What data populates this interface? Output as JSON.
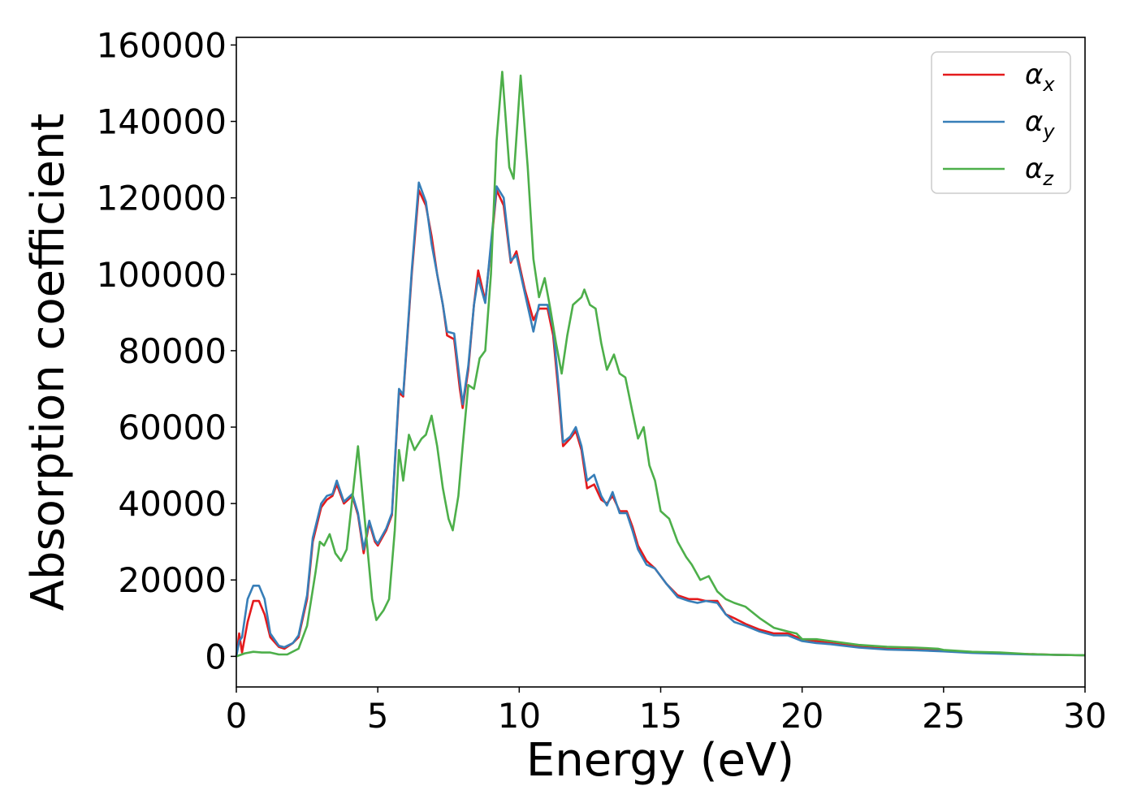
{
  "chart_data": {
    "type": "line",
    "xlabel": "Energy (eV)",
    "ylabel": "Absorption coefficient",
    "xlim": [
      0,
      30
    ],
    "ylim": [
      -8000,
      162000
    ],
    "xticks": [
      0,
      5,
      10,
      15,
      20,
      25,
      30
    ],
    "yticks": [
      0,
      20000,
      40000,
      60000,
      80000,
      100000,
      120000,
      140000,
      160000
    ],
    "grid": false,
    "legend_position": "top-right",
    "series": [
      {
        "name": "αx",
        "legend_base": "α",
        "legend_sub": "x",
        "color": "#e41a1c",
        "points": [
          [
            0,
            0
          ],
          [
            0.1,
            6000
          ],
          [
            0.2,
            1000
          ],
          [
            0.4,
            9000
          ],
          [
            0.6,
            14500
          ],
          [
            0.8,
            14500
          ],
          [
            1.0,
            11000
          ],
          [
            1.2,
            5000
          ],
          [
            1.5,
            2500
          ],
          [
            1.7,
            2000
          ],
          [
            2.0,
            3500
          ],
          [
            2.2,
            5000
          ],
          [
            2.5,
            15000
          ],
          [
            2.7,
            30000
          ],
          [
            3.0,
            39000
          ],
          [
            3.2,
            41000
          ],
          [
            3.4,
            42000
          ],
          [
            3.55,
            45000
          ],
          [
            3.8,
            40000
          ],
          [
            4.1,
            42000
          ],
          [
            4.3,
            37000
          ],
          [
            4.5,
            27000
          ],
          [
            4.7,
            35000
          ],
          [
            4.9,
            30000
          ],
          [
            5.0,
            29000
          ],
          [
            5.3,
            33000
          ],
          [
            5.5,
            37000
          ],
          [
            5.75,
            69000
          ],
          [
            5.9,
            68000
          ],
          [
            6.2,
            100000
          ],
          [
            6.45,
            122000
          ],
          [
            6.7,
            118000
          ],
          [
            6.9,
            110000
          ],
          [
            7.1,
            100000
          ],
          [
            7.3,
            92000
          ],
          [
            7.45,
            84000
          ],
          [
            7.7,
            83000
          ],
          [
            7.9,
            70000
          ],
          [
            8.0,
            65000
          ],
          [
            8.2,
            75000
          ],
          [
            8.4,
            92000
          ],
          [
            8.55,
            101000
          ],
          [
            8.8,
            93000
          ],
          [
            9.0,
            107000
          ],
          [
            9.2,
            122000
          ],
          [
            9.45,
            118000
          ],
          [
            9.7,
            103000
          ],
          [
            9.9,
            106000
          ],
          [
            10.2,
            96000
          ],
          [
            10.5,
            88000
          ],
          [
            10.7,
            91000
          ],
          [
            11.0,
            91000
          ],
          [
            11.2,
            84000
          ],
          [
            11.4,
            68000
          ],
          [
            11.55,
            55000
          ],
          [
            11.8,
            57000
          ],
          [
            12.0,
            59000
          ],
          [
            12.2,
            54000
          ],
          [
            12.4,
            44000
          ],
          [
            12.65,
            45000
          ],
          [
            12.9,
            41000
          ],
          [
            13.1,
            40000
          ],
          [
            13.3,
            42000
          ],
          [
            13.55,
            38000
          ],
          [
            13.8,
            38000
          ],
          [
            14.0,
            34000
          ],
          [
            14.2,
            29000
          ],
          [
            14.5,
            25000
          ],
          [
            14.8,
            23000
          ],
          [
            15.2,
            19000
          ],
          [
            15.6,
            16000
          ],
          [
            16.0,
            15000
          ],
          [
            16.3,
            15000
          ],
          [
            16.6,
            14500
          ],
          [
            17.0,
            14500
          ],
          [
            17.3,
            11000
          ],
          [
            17.6,
            10000
          ],
          [
            18.0,
            8500
          ],
          [
            18.5,
            7000
          ],
          [
            19.0,
            6000
          ],
          [
            19.5,
            6000
          ],
          [
            20.0,
            4500
          ],
          [
            20.5,
            4000
          ],
          [
            21.0,
            3500
          ],
          [
            22.0,
            2500
          ],
          [
            23.0,
            2000
          ],
          [
            24.0,
            1800
          ],
          [
            25.0,
            1500
          ],
          [
            26.0,
            1100
          ],
          [
            27.0,
            800
          ],
          [
            28.0,
            600
          ],
          [
            29.0,
            400
          ],
          [
            30.0,
            300
          ]
        ]
      },
      {
        "name": "αy",
        "legend_base": "α",
        "legend_sub": "y",
        "color": "#377eb8",
        "points": [
          [
            0,
            0
          ],
          [
            0.1,
            4000
          ],
          [
            0.2,
            5000
          ],
          [
            0.4,
            15000
          ],
          [
            0.6,
            18500
          ],
          [
            0.8,
            18500
          ],
          [
            1.0,
            15000
          ],
          [
            1.2,
            6000
          ],
          [
            1.5,
            2800
          ],
          [
            1.7,
            2400
          ],
          [
            2.0,
            3500
          ],
          [
            2.2,
            5500
          ],
          [
            2.5,
            16000
          ],
          [
            2.7,
            31000
          ],
          [
            3.0,
            40000
          ],
          [
            3.2,
            42000
          ],
          [
            3.4,
            42500
          ],
          [
            3.55,
            46000
          ],
          [
            3.8,
            40500
          ],
          [
            4.1,
            42500
          ],
          [
            4.3,
            37500
          ],
          [
            4.5,
            28000
          ],
          [
            4.7,
            35500
          ],
          [
            4.9,
            30500
          ],
          [
            5.0,
            29500
          ],
          [
            5.3,
            33500
          ],
          [
            5.5,
            37500
          ],
          [
            5.75,
            70000
          ],
          [
            5.9,
            68500
          ],
          [
            6.2,
            101000
          ],
          [
            6.45,
            124000
          ],
          [
            6.7,
            119000
          ],
          [
            6.9,
            108000
          ],
          [
            7.1,
            100000
          ],
          [
            7.3,
            92000
          ],
          [
            7.45,
            85000
          ],
          [
            7.7,
            84500
          ],
          [
            7.9,
            72000
          ],
          [
            8.0,
            66000
          ],
          [
            8.2,
            76000
          ],
          [
            8.4,
            92000
          ],
          [
            8.55,
            99000
          ],
          [
            8.8,
            92500
          ],
          [
            9.0,
            108000
          ],
          [
            9.2,
            123000
          ],
          [
            9.45,
            120000
          ],
          [
            9.7,
            103500
          ],
          [
            9.9,
            105000
          ],
          [
            10.2,
            95000
          ],
          [
            10.5,
            85000
          ],
          [
            10.7,
            92000
          ],
          [
            11.0,
            92000
          ],
          [
            11.2,
            86000
          ],
          [
            11.4,
            70000
          ],
          [
            11.55,
            56000
          ],
          [
            11.8,
            57500
          ],
          [
            12.0,
            60000
          ],
          [
            12.2,
            55000
          ],
          [
            12.4,
            46000
          ],
          [
            12.65,
            47500
          ],
          [
            12.9,
            42000
          ],
          [
            13.1,
            39500
          ],
          [
            13.3,
            43000
          ],
          [
            13.55,
            37500
          ],
          [
            13.8,
            37500
          ],
          [
            14.0,
            33000
          ],
          [
            14.2,
            28000
          ],
          [
            14.5,
            24000
          ],
          [
            14.8,
            23000
          ],
          [
            15.2,
            19000
          ],
          [
            15.6,
            15500
          ],
          [
            16.0,
            14500
          ],
          [
            16.3,
            14000
          ],
          [
            16.6,
            14500
          ],
          [
            17.0,
            14000
          ],
          [
            17.3,
            11000
          ],
          [
            17.6,
            9000
          ],
          [
            18.0,
            8000
          ],
          [
            18.5,
            6500
          ],
          [
            19.0,
            5500
          ],
          [
            19.5,
            5500
          ],
          [
            20.0,
            4000
          ],
          [
            20.5,
            3500
          ],
          [
            21.0,
            3200
          ],
          [
            22.0,
            2300
          ],
          [
            23.0,
            1800
          ],
          [
            24.0,
            1600
          ],
          [
            25.0,
            1300
          ],
          [
            26.0,
            900
          ],
          [
            27.0,
            700
          ],
          [
            28.0,
            500
          ],
          [
            29.0,
            400
          ],
          [
            30.0,
            300
          ]
        ]
      },
      {
        "name": "αz",
        "legend_base": "α",
        "legend_sub": "z",
        "color": "#4daf4a",
        "points": [
          [
            0,
            0
          ],
          [
            0.3,
            800
          ],
          [
            0.6,
            1200
          ],
          [
            0.9,
            1000
          ],
          [
            1.2,
            1000
          ],
          [
            1.5,
            500
          ],
          [
            1.8,
            500
          ],
          [
            2.2,
            2000
          ],
          [
            2.5,
            8000
          ],
          [
            2.8,
            22000
          ],
          [
            2.95,
            30000
          ],
          [
            3.1,
            29000
          ],
          [
            3.3,
            32000
          ],
          [
            3.5,
            27000
          ],
          [
            3.7,
            25000
          ],
          [
            3.9,
            28000
          ],
          [
            4.05,
            38000
          ],
          [
            4.3,
            55000
          ],
          [
            4.55,
            35000
          ],
          [
            4.8,
            15000
          ],
          [
            4.95,
            9500
          ],
          [
            5.2,
            12000
          ],
          [
            5.4,
            15000
          ],
          [
            5.6,
            33000
          ],
          [
            5.75,
            54000
          ],
          [
            5.9,
            46000
          ],
          [
            6.1,
            58000
          ],
          [
            6.3,
            54000
          ],
          [
            6.55,
            57000
          ],
          [
            6.7,
            58000
          ],
          [
            6.9,
            63000
          ],
          [
            7.1,
            55000
          ],
          [
            7.3,
            44000
          ],
          [
            7.5,
            36000
          ],
          [
            7.65,
            33000
          ],
          [
            7.85,
            42000
          ],
          [
            8.0,
            55000
          ],
          [
            8.2,
            71000
          ],
          [
            8.4,
            70000
          ],
          [
            8.6,
            78000
          ],
          [
            8.8,
            80000
          ],
          [
            9.0,
            100000
          ],
          [
            9.2,
            135000
          ],
          [
            9.4,
            153000
          ],
          [
            9.65,
            128000
          ],
          [
            9.8,
            125000
          ],
          [
            10.05,
            152000
          ],
          [
            10.3,
            128000
          ],
          [
            10.5,
            104000
          ],
          [
            10.7,
            94000
          ],
          [
            10.9,
            99000
          ],
          [
            11.1,
            91000
          ],
          [
            11.3,
            82000
          ],
          [
            11.5,
            74000
          ],
          [
            11.7,
            84000
          ],
          [
            11.9,
            92000
          ],
          [
            12.2,
            94000
          ],
          [
            12.3,
            96000
          ],
          [
            12.5,
            92000
          ],
          [
            12.7,
            91000
          ],
          [
            12.9,
            82000
          ],
          [
            13.1,
            75000
          ],
          [
            13.35,
            79000
          ],
          [
            13.55,
            74000
          ],
          [
            13.75,
            73000
          ],
          [
            14.0,
            64000
          ],
          [
            14.2,
            57000
          ],
          [
            14.4,
            60000
          ],
          [
            14.6,
            50000
          ],
          [
            14.8,
            46000
          ],
          [
            15.0,
            38000
          ],
          [
            15.3,
            36000
          ],
          [
            15.6,
            30000
          ],
          [
            15.9,
            26000
          ],
          [
            16.1,
            24000
          ],
          [
            16.4,
            20000
          ],
          [
            16.7,
            21000
          ],
          [
            17.0,
            17000
          ],
          [
            17.3,
            15000
          ],
          [
            17.6,
            14000
          ],
          [
            18.0,
            13000
          ],
          [
            18.5,
            10000
          ],
          [
            19.0,
            7500
          ],
          [
            19.5,
            6500
          ],
          [
            19.8,
            6000
          ],
          [
            20.0,
            4500
          ],
          [
            20.5,
            4500
          ],
          [
            21.0,
            4000
          ],
          [
            22.0,
            3000
          ],
          [
            23.0,
            2500
          ],
          [
            24.0,
            2300
          ],
          [
            24.8,
            2000
          ],
          [
            25.0,
            1700
          ],
          [
            26.0,
            1200
          ],
          [
            27.0,
            1000
          ],
          [
            28.0,
            600
          ],
          [
            29.0,
            400
          ],
          [
            30.0,
            300
          ]
        ]
      }
    ]
  }
}
